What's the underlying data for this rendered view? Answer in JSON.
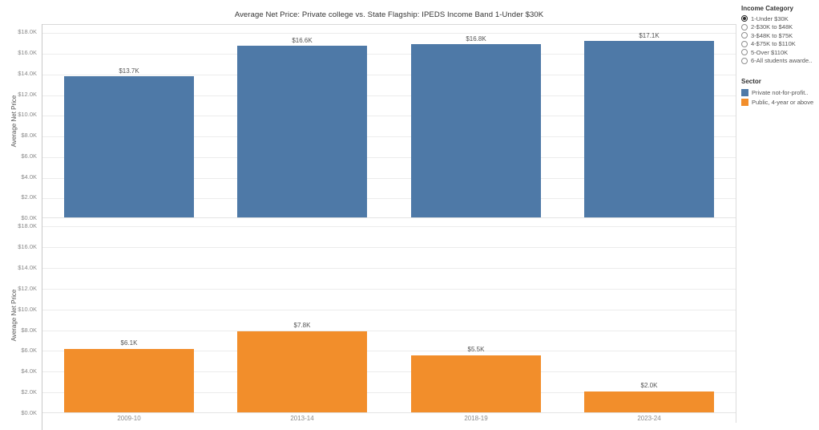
{
  "title": "Average Net Price: Private college vs. State Flagship: IPEDS Income Band 1-Under $30K",
  "chart_data": {
    "type": "bar",
    "title": "Average Net Price: Private college vs. State Flagship: IPEDS Income Band 1-Under $30K",
    "categories": [
      "2009-10",
      "2013-14",
      "2018-19",
      "2023-24"
    ],
    "series": [
      {
        "name": "Private not-for-profit..",
        "color": "#4e79a7",
        "values": [
          13700,
          16600,
          16800,
          17100
        ],
        "value_labels": [
          "$13.7K",
          "$16.6K",
          "$16.8K",
          "$17.1K"
        ]
      },
      {
        "name": "Public, 4-year or above",
        "color": "#f28e2b",
        "values": [
          6100,
          7800,
          5500,
          2000
        ],
        "value_labels": [
          "$6.1K",
          "$7.8K",
          "$5.5K",
          "$2.0K"
        ]
      }
    ],
    "xlabel": "",
    "ylabel": "Average Net Price",
    "ylim": [
      0,
      18800
    ],
    "yticks": [
      {
        "value": 0,
        "label": "$0.0K"
      },
      {
        "value": 2000,
        "label": "$2.0K"
      },
      {
        "value": 4000,
        "label": "$4.0K"
      },
      {
        "value": 6000,
        "label": "$6.0K"
      },
      {
        "value": 8000,
        "label": "$8.0K"
      },
      {
        "value": 10000,
        "label": "$10.0K"
      },
      {
        "value": 12000,
        "label": "$12.0K"
      },
      {
        "value": 14000,
        "label": "$14.0K"
      },
      {
        "value": 16000,
        "label": "$16.0K"
      },
      {
        "value": 18000,
        "label": "$18.0K"
      }
    ],
    "grid": true,
    "layout": "two stacked panels, one panel per series",
    "legend_position": "right"
  },
  "sidebar": {
    "income_category": {
      "title": "Income Category",
      "options": [
        {
          "label": "1-Under $30K",
          "selected": true
        },
        {
          "label": "2-$30K to $48K",
          "selected": false
        },
        {
          "label": "3-$48K to $75K",
          "selected": false
        },
        {
          "label": "4-$75K to $110K",
          "selected": false
        },
        {
          "label": "5-Over $110K",
          "selected": false
        },
        {
          "label": "6-All students awarde..",
          "selected": false
        }
      ]
    },
    "sector": {
      "title": "Sector",
      "items": [
        {
          "label": "Private not-for-profit..",
          "color": "#4e79a7"
        },
        {
          "label": "Public, 4-year or above",
          "color": "#f28e2b"
        }
      ]
    }
  }
}
